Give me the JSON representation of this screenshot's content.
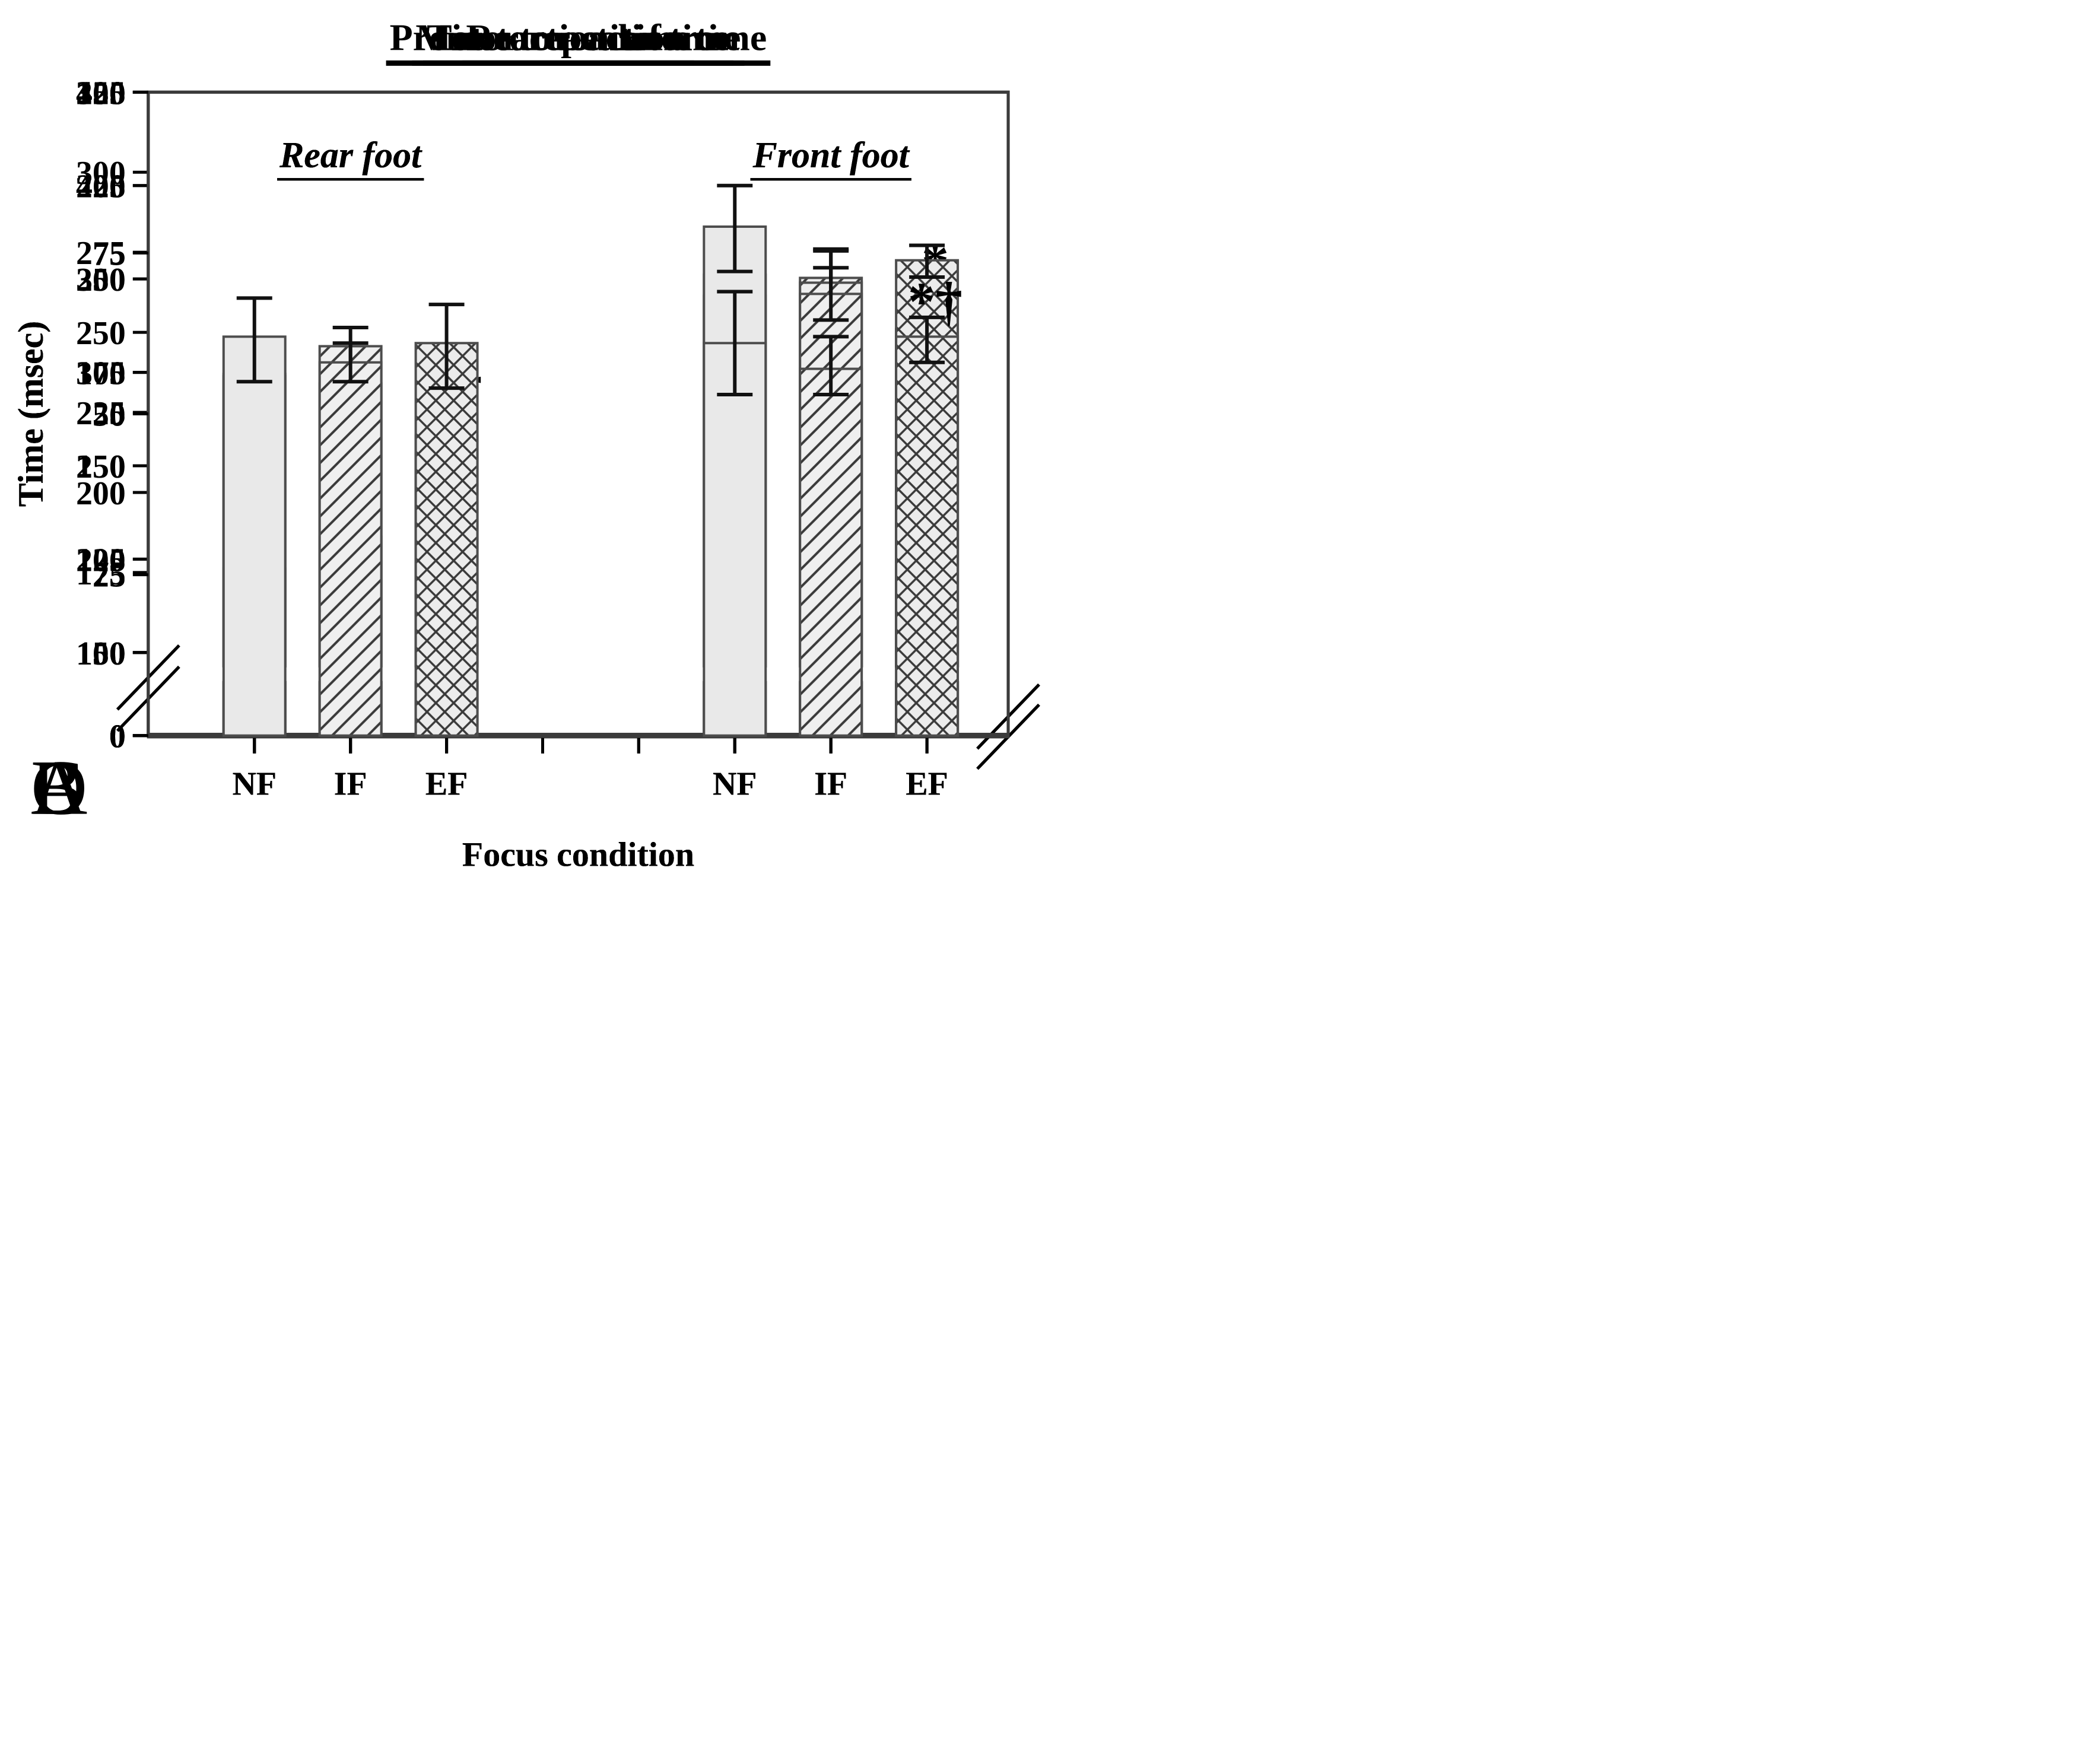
{
  "figure": {
    "background": "#ffffff",
    "colors": {
      "bar_fill": "#e9e9e9",
      "bar_border": "#4d4d4d",
      "hatch_stroke": "#3a3a3a",
      "axis": "#3b3b3b",
      "error_bar": "#111111",
      "text": "#000000"
    },
    "bar_styles": {
      "NF": "plain",
      "IF": "diagonal-hatch",
      "EF": "crosshatch"
    }
  },
  "chart_data": [
    {
      "panel_letter": "A",
      "type": "bar",
      "title": "Reaction time",
      "ylabel": "Time (msec)",
      "xlabel": "Focus condition",
      "categories": [
        "NF",
        "IF",
        "EF"
      ],
      "y_axis": {
        "min": 0,
        "max": 325,
        "break": true,
        "lowest_tick_above_break": 150,
        "ticks": [
          0,
          150,
          175,
          200,
          225,
          250,
          275,
          300,
          325
        ]
      },
      "groups": [
        {
          "label": "Rear foot",
          "bars": [
            {
              "category": "NF",
              "style": "plain",
              "value": 237,
              "err_low": 229,
              "err_high": 245,
              "annotation": ""
            },
            {
              "category": "IF",
              "style": "diagonal-hatch",
              "value": 234,
              "err_low": 229,
              "err_high": 240,
              "annotation": ""
            },
            {
              "category": "EF",
              "style": "crosshatch",
              "value": 212,
              "err_low": 204,
              "err_high": 220,
              "annotation": "*†"
            }
          ]
        },
        {
          "label": "Front foot",
          "bars": [
            {
              "category": "NF",
              "style": "plain",
              "value": 268,
              "err_low": 261,
              "err_high": 276,
              "annotation": ""
            },
            {
              "category": "IF",
              "style": "diagonal-hatch",
              "value": 267,
              "err_low": 259,
              "err_high": 276,
              "annotation": ""
            },
            {
              "category": "EF",
              "style": "crosshatch",
              "value": 251,
              "err_low": 242,
              "err_high": 259,
              "annotation": "*"
            }
          ]
        }
      ]
    },
    {
      "panel_letter": "B",
      "type": "bar",
      "title": "Time to peak force",
      "ylabel": "Time (msec)",
      "xlabel": "Focus condition",
      "categories": [
        "NF",
        "IF",
        "EF"
      ],
      "y_axis": {
        "min": 0,
        "max": 450,
        "break": true,
        "lowest_tick_above_break": 150,
        "ticks": [
          0,
          150,
          200,
          250,
          300,
          350,
          400,
          450
        ]
      },
      "groups": [
        {
          "label": "Rear foot",
          "bars": [
            {
              "category": "NF",
              "style": "plain",
              "value": 195,
              "err_low": 177,
              "err_high": 212,
              "annotation": ""
            },
            {
              "category": "IF",
              "style": "diagonal-hatch",
              "value": 212,
              "err_low": 190,
              "err_high": 233,
              "annotation": ""
            },
            {
              "category": "EF",
              "style": "crosshatch",
              "value": 191,
              "err_low": 175,
              "err_high": 206,
              "annotation": ""
            }
          ]
        },
        {
          "label": "Front foot",
          "bars": [
            {
              "category": "NF",
              "style": "plain",
              "value": 341,
              "err_low": 324,
              "err_high": 357,
              "annotation": ""
            },
            {
              "category": "IF",
              "style": "diagonal-hatch",
              "value": 348,
              "err_low": 331,
              "err_high": 365,
              "annotation": ""
            },
            {
              "category": "EF",
              "style": "crosshatch",
              "value": 360,
              "err_low": 351,
              "err_high": 368,
              "annotation": ""
            }
          ]
        }
      ]
    },
    {
      "panel_letter": "C",
      "type": "bar",
      "title": "Premotor reaction time",
      "ylabel": "Time (msec)",
      "xlabel": "Focus condition",
      "categories": [
        "NF",
        "IF",
        "EF"
      ],
      "y_axis": {
        "min": 0,
        "max": 250,
        "break": true,
        "lowest_tick_above_break": 100,
        "ticks": [
          0,
          100,
          125,
          150,
          175,
          200,
          225,
          250
        ]
      },
      "groups": [
        {
          "label": "Rear foot",
          "bars": [
            {
              "category": "NF",
              "style": "plain",
              "value": 174,
              "err_low": 166,
              "err_high": 181,
              "annotation": ""
            },
            {
              "category": "IF",
              "style": "diagonal-hatch",
              "value": 182,
              "err_low": 176,
              "err_high": 187,
              "annotation": ""
            },
            {
              "category": "EF",
              "style": "crosshatch",
              "value": 158,
              "err_low": 151,
              "err_high": 164,
              "annotation": "*"
            }
          ]
        },
        {
          "label": "Front foot",
          "bars": [
            {
              "category": "NF",
              "style": "plain",
              "value": 214,
              "err_low": 202,
              "err_high": 225,
              "annotation": ""
            },
            {
              "category": "IF",
              "style": "diagonal-hatch",
              "value": 196,
              "err_low": 189,
              "err_high": 203,
              "annotation": ""
            },
            {
              "category": "EF",
              "style": "crosshatch",
              "value": 175,
              "err_low": 167,
              "err_high": 183,
              "annotation": "*†"
            }
          ]
        }
      ]
    },
    {
      "panel_letter": "D",
      "type": "bar",
      "title": "Motor reaction time",
      "ylabel": "Time (msec)",
      "xlabel": "Focus condition",
      "categories": [
        "NF",
        "IF",
        "EF"
      ],
      "y_axis": {
        "min": 0,
        "max": 100,
        "break": false,
        "lowest_tick_above_break": 0,
        "ticks": [
          0,
          25,
          50,
          75,
          100
        ]
      },
      "groups": [
        {
          "label": "Rear foot",
          "bars": [
            {
              "category": "NF",
              "style": "plain",
              "value": 62,
              "err_low": 55,
              "err_high": 68,
              "annotation": ""
            },
            {
              "category": "IF",
              "style": "diagonal-hatch",
              "value": 58,
              "err_low": 55,
              "err_high": 61,
              "annotation": ""
            },
            {
              "category": "EF",
              "style": "crosshatch",
              "value": 61,
              "err_low": 54,
              "err_high": 67,
              "annotation": ""
            }
          ]
        },
        {
          "label": "Front foot",
          "bars": [
            {
              "category": "NF",
              "style": "plain",
              "value": 61,
              "err_low": 53,
              "err_high": 69,
              "annotation": ""
            },
            {
              "category": "IF",
              "style": "diagonal-hatch",
              "value": 57,
              "err_low": 53,
              "err_high": 62,
              "annotation": ""
            },
            {
              "category": "EF",
              "style": "crosshatch",
              "value": 62,
              "err_low": 58,
              "err_high": 65,
              "annotation": ""
            }
          ]
        }
      ]
    }
  ]
}
